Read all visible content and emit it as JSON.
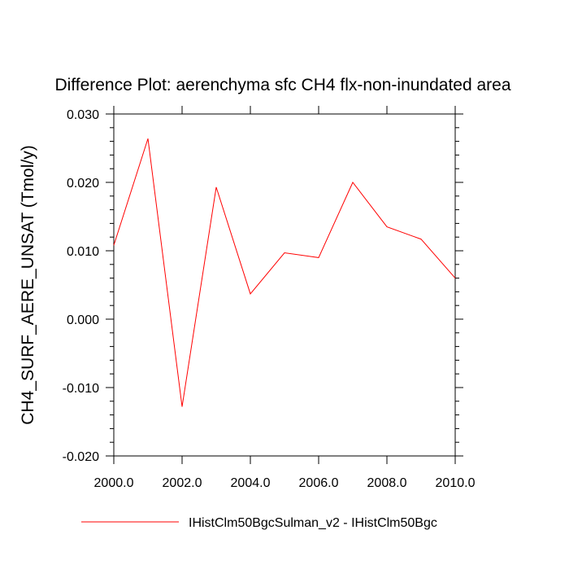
{
  "chart_data": {
    "type": "line",
    "title": "Difference Plot: aerenchyma sfc CH4 flx-non-inundated area",
    "xlabel": "",
    "ylabel": "CH4_SURF_AERE_UNSAT  (Tmol/y)",
    "xlim": [
      2000,
      2010
    ],
    "ylim": [
      -0.02,
      0.03
    ],
    "x_ticks": [
      2000,
      2002,
      2004,
      2006,
      2008,
      2010
    ],
    "x_tick_labels": [
      "2000.0",
      "2002.0",
      "2004.0",
      "2006.0",
      "2008.0",
      "2010.0"
    ],
    "y_ticks": [
      -0.02,
      -0.01,
      0.0,
      0.01,
      0.02,
      0.03
    ],
    "y_tick_labels": [
      "-0.020",
      "-0.010",
      "0.000",
      "0.010",
      "0.020",
      "0.030"
    ],
    "grid": false,
    "legend_position": "bottom",
    "series": [
      {
        "name": "IHistClm50BgcSulman_v2 - IHistClm50Bgc",
        "color": "#ff0000",
        "x": [
          2000,
          2001,
          2002,
          2003,
          2004,
          2005,
          2006,
          2007,
          2008,
          2009,
          2010
        ],
        "values": [
          0.0108,
          0.0264,
          -0.0128,
          0.0193,
          0.0037,
          0.0097,
          0.009,
          0.02,
          0.0135,
          0.0117,
          0.006
        ]
      }
    ]
  }
}
